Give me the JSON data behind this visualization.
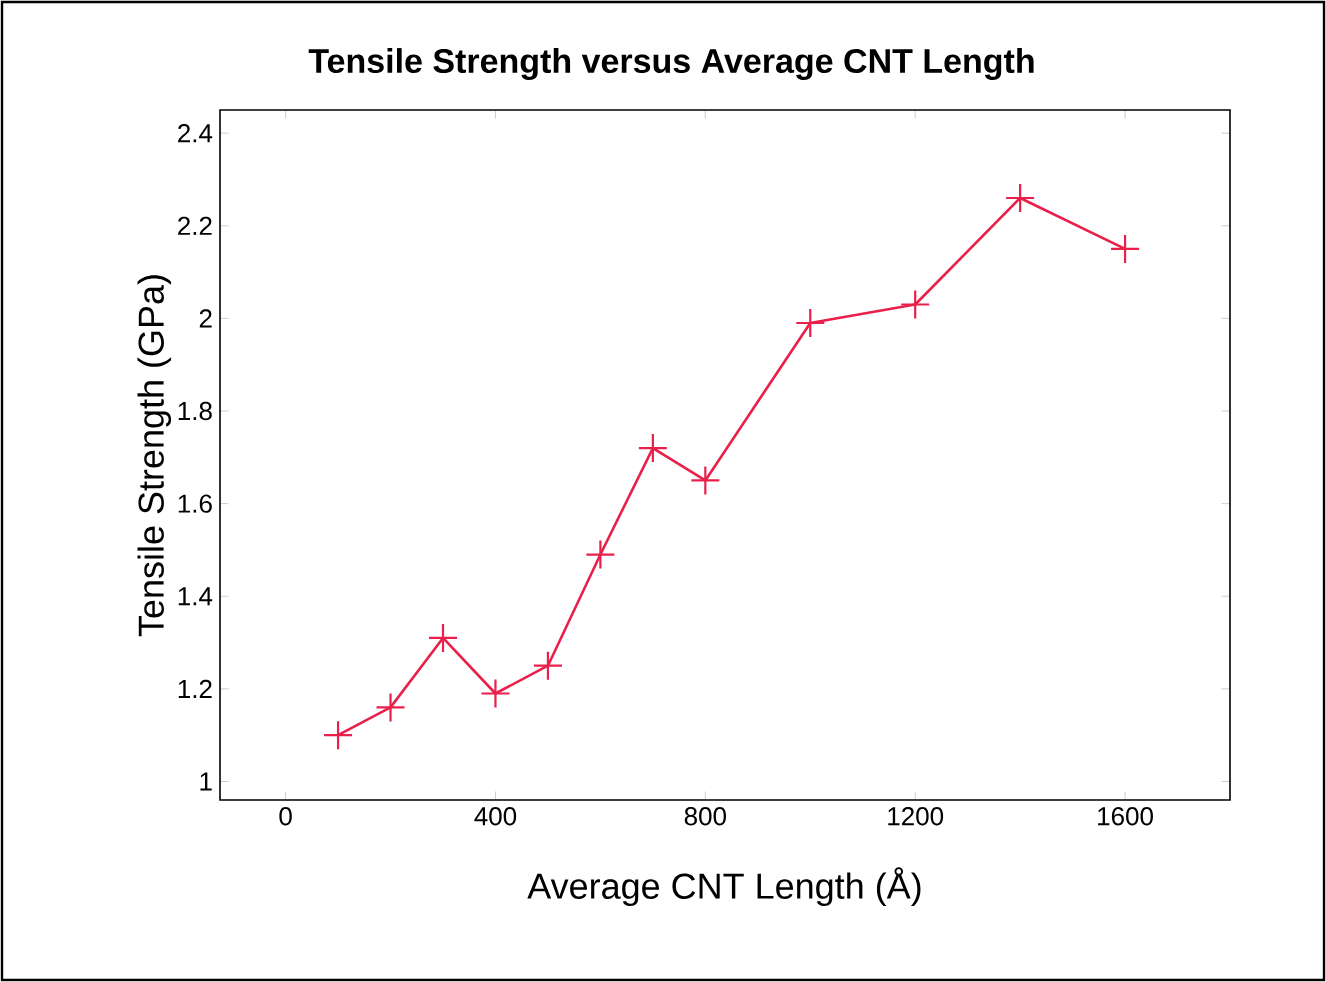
{
  "chart_data": {
    "type": "line",
    "title": "Tensile Strength versus Average CNT Length",
    "xlabel": "Average CNT Length (Å)",
    "ylabel": "Tensile Strength (GPa)",
    "x": [
      100,
      200,
      300,
      400,
      500,
      600,
      700,
      800,
      1000,
      1200,
      1400,
      1600
    ],
    "series": [
      {
        "color": "#e8204a",
        "values": [
          1.1,
          1.16,
          1.31,
          1.19,
          1.25,
          1.49,
          1.72,
          1.65,
          1.99,
          2.03,
          2.26,
          2.15
        ]
      }
    ],
    "xlim": [
      -125,
      1800
    ],
    "ylim": [
      0.96,
      2.45
    ],
    "xticks": [
      0,
      400,
      800,
      1200,
      1600
    ],
    "yticks": [
      1,
      1.2,
      1.4,
      1.6,
      1.8,
      2,
      2.2,
      2.4
    ],
    "marker": "cross",
    "line_style": "solid"
  }
}
